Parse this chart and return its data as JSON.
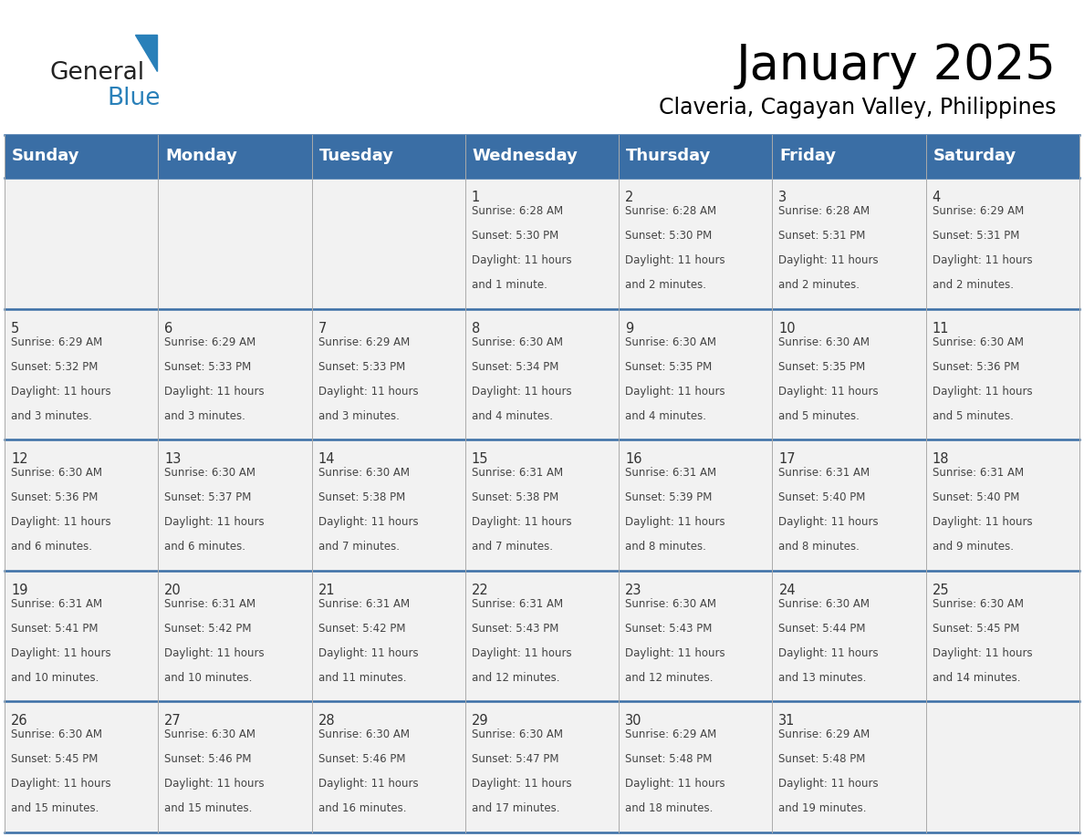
{
  "title": "January 2025",
  "subtitle": "Claveria, Cagayan Valley, Philippines",
  "header_color": "#3a6ea5",
  "header_text_color": "#ffffff",
  "cell_bg_color": "#f2f2f2",
  "day_headers": [
    "Sunday",
    "Monday",
    "Tuesday",
    "Wednesday",
    "Thursday",
    "Friday",
    "Saturday"
  ],
  "title_fontsize": 38,
  "subtitle_fontsize": 17,
  "header_fontsize": 13,
  "date_fontsize": 10.5,
  "cell_fontsize": 8.5,
  "logo_general_color": "#222222",
  "logo_blue_color": "#2980b9",
  "separator_color": "#3a6ea5",
  "days": [
    {
      "date": 1,
      "col": 3,
      "row": 0,
      "sunrise": "6:28 AM",
      "sunset": "5:30 PM",
      "daylight_hours": 11,
      "daylight_minutes": 1
    },
    {
      "date": 2,
      "col": 4,
      "row": 0,
      "sunrise": "6:28 AM",
      "sunset": "5:30 PM",
      "daylight_hours": 11,
      "daylight_minutes": 2
    },
    {
      "date": 3,
      "col": 5,
      "row": 0,
      "sunrise": "6:28 AM",
      "sunset": "5:31 PM",
      "daylight_hours": 11,
      "daylight_minutes": 2
    },
    {
      "date": 4,
      "col": 6,
      "row": 0,
      "sunrise": "6:29 AM",
      "sunset": "5:31 PM",
      "daylight_hours": 11,
      "daylight_minutes": 2
    },
    {
      "date": 5,
      "col": 0,
      "row": 1,
      "sunrise": "6:29 AM",
      "sunset": "5:32 PM",
      "daylight_hours": 11,
      "daylight_minutes": 3
    },
    {
      "date": 6,
      "col": 1,
      "row": 1,
      "sunrise": "6:29 AM",
      "sunset": "5:33 PM",
      "daylight_hours": 11,
      "daylight_minutes": 3
    },
    {
      "date": 7,
      "col": 2,
      "row": 1,
      "sunrise": "6:29 AM",
      "sunset": "5:33 PM",
      "daylight_hours": 11,
      "daylight_minutes": 3
    },
    {
      "date": 8,
      "col": 3,
      "row": 1,
      "sunrise": "6:30 AM",
      "sunset": "5:34 PM",
      "daylight_hours": 11,
      "daylight_minutes": 4
    },
    {
      "date": 9,
      "col": 4,
      "row": 1,
      "sunrise": "6:30 AM",
      "sunset": "5:35 PM",
      "daylight_hours": 11,
      "daylight_minutes": 4
    },
    {
      "date": 10,
      "col": 5,
      "row": 1,
      "sunrise": "6:30 AM",
      "sunset": "5:35 PM",
      "daylight_hours": 11,
      "daylight_minutes": 5
    },
    {
      "date": 11,
      "col": 6,
      "row": 1,
      "sunrise": "6:30 AM",
      "sunset": "5:36 PM",
      "daylight_hours": 11,
      "daylight_minutes": 5
    },
    {
      "date": 12,
      "col": 0,
      "row": 2,
      "sunrise": "6:30 AM",
      "sunset": "5:36 PM",
      "daylight_hours": 11,
      "daylight_minutes": 6
    },
    {
      "date": 13,
      "col": 1,
      "row": 2,
      "sunrise": "6:30 AM",
      "sunset": "5:37 PM",
      "daylight_hours": 11,
      "daylight_minutes": 6
    },
    {
      "date": 14,
      "col": 2,
      "row": 2,
      "sunrise": "6:30 AM",
      "sunset": "5:38 PM",
      "daylight_hours": 11,
      "daylight_minutes": 7
    },
    {
      "date": 15,
      "col": 3,
      "row": 2,
      "sunrise": "6:31 AM",
      "sunset": "5:38 PM",
      "daylight_hours": 11,
      "daylight_minutes": 7
    },
    {
      "date": 16,
      "col": 4,
      "row": 2,
      "sunrise": "6:31 AM",
      "sunset": "5:39 PM",
      "daylight_hours": 11,
      "daylight_minutes": 8
    },
    {
      "date": 17,
      "col": 5,
      "row": 2,
      "sunrise": "6:31 AM",
      "sunset": "5:40 PM",
      "daylight_hours": 11,
      "daylight_minutes": 8
    },
    {
      "date": 18,
      "col": 6,
      "row": 2,
      "sunrise": "6:31 AM",
      "sunset": "5:40 PM",
      "daylight_hours": 11,
      "daylight_minutes": 9
    },
    {
      "date": 19,
      "col": 0,
      "row": 3,
      "sunrise": "6:31 AM",
      "sunset": "5:41 PM",
      "daylight_hours": 11,
      "daylight_minutes": 10
    },
    {
      "date": 20,
      "col": 1,
      "row": 3,
      "sunrise": "6:31 AM",
      "sunset": "5:42 PM",
      "daylight_hours": 11,
      "daylight_minutes": 10
    },
    {
      "date": 21,
      "col": 2,
      "row": 3,
      "sunrise": "6:31 AM",
      "sunset": "5:42 PM",
      "daylight_hours": 11,
      "daylight_minutes": 11
    },
    {
      "date": 22,
      "col": 3,
      "row": 3,
      "sunrise": "6:31 AM",
      "sunset": "5:43 PM",
      "daylight_hours": 11,
      "daylight_minutes": 12
    },
    {
      "date": 23,
      "col": 4,
      "row": 3,
      "sunrise": "6:30 AM",
      "sunset": "5:43 PM",
      "daylight_hours": 11,
      "daylight_minutes": 12
    },
    {
      "date": 24,
      "col": 5,
      "row": 3,
      "sunrise": "6:30 AM",
      "sunset": "5:44 PM",
      "daylight_hours": 11,
      "daylight_minutes": 13
    },
    {
      "date": 25,
      "col": 6,
      "row": 3,
      "sunrise": "6:30 AM",
      "sunset": "5:45 PM",
      "daylight_hours": 11,
      "daylight_minutes": 14
    },
    {
      "date": 26,
      "col": 0,
      "row": 4,
      "sunrise": "6:30 AM",
      "sunset": "5:45 PM",
      "daylight_hours": 11,
      "daylight_minutes": 15
    },
    {
      "date": 27,
      "col": 1,
      "row": 4,
      "sunrise": "6:30 AM",
      "sunset": "5:46 PM",
      "daylight_hours": 11,
      "daylight_minutes": 15
    },
    {
      "date": 28,
      "col": 2,
      "row": 4,
      "sunrise": "6:30 AM",
      "sunset": "5:46 PM",
      "daylight_hours": 11,
      "daylight_minutes": 16
    },
    {
      "date": 29,
      "col": 3,
      "row": 4,
      "sunrise": "6:30 AM",
      "sunset": "5:47 PM",
      "daylight_hours": 11,
      "daylight_minutes": 17
    },
    {
      "date": 30,
      "col": 4,
      "row": 4,
      "sunrise": "6:29 AM",
      "sunset": "5:48 PM",
      "daylight_hours": 11,
      "daylight_minutes": 18
    },
    {
      "date": 31,
      "col": 5,
      "row": 4,
      "sunrise": "6:29 AM",
      "sunset": "5:48 PM",
      "daylight_hours": 11,
      "daylight_minutes": 19
    }
  ]
}
